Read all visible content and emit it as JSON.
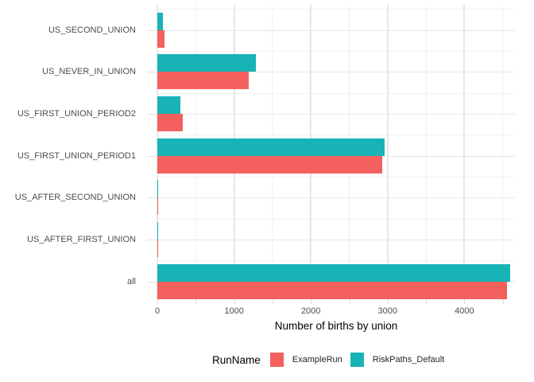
{
  "chart_data": {
    "type": "bar",
    "orientation": "horizontal",
    "xlabel": "Number of births by union",
    "ylabel": "",
    "categories_top_to_bottom": [
      "US_SECOND_UNION",
      "US_NEVER_IN_UNION",
      "US_FIRST_UNION_PERIOD2",
      "US_FIRST_UNION_PERIOD1",
      "US_AFTER_SECOND_UNION",
      "US_AFTER_FIRST_UNION",
      "all"
    ],
    "series": [
      {
        "name": "ExampleRun",
        "color": "#F4605D",
        "values": [
          95,
          1195,
          335,
          2930,
          10,
          10,
          4550
        ]
      },
      {
        "name": "RiskPaths_Default",
        "color": "#18B3B5",
        "values": [
          75,
          1285,
          300,
          2965,
          10,
          10,
          4600
        ]
      }
    ],
    "x_axis": {
      "tick_labels": [
        "0",
        "1000",
        "2000",
        "3000",
        "4000"
      ],
      "tick_values": [
        0,
        1000,
        2000,
        3000,
        4000
      ],
      "minor_tick_values": [
        500,
        1500,
        2500,
        3500,
        4500
      ],
      "range": [
        0,
        4660
      ],
      "grid": true
    },
    "legend": {
      "title": "RunName",
      "position": "bottom",
      "entries": [
        "ExampleRun",
        "RiskPaths_Default"
      ]
    }
  },
  "colors": {
    "background": "#FFFFFF",
    "grid_major": "#E7E7E7",
    "grid_minor": "#F1F1F1",
    "tick": "#DBDBDB",
    "tick_label": "#4D4D4D",
    "axis_title": "#000000",
    "legend_label": "#262626"
  }
}
